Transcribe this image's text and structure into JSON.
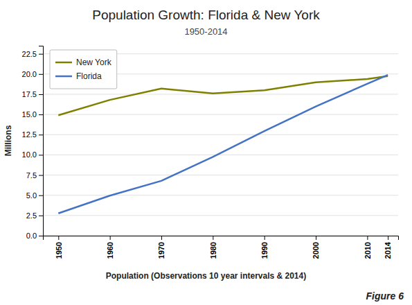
{
  "chart_data": {
    "type": "line",
    "title": "Population Growth: Florida & New York",
    "subtitle": "1950-2014",
    "xlabel": "Population (Observations 10 year intervals & 2014)",
    "ylabel": "Millions",
    "annotations": [
      "Figure 6"
    ],
    "x": [
      1950,
      1960,
      1970,
      1980,
      1990,
      2000,
      2010,
      2014
    ],
    "series": [
      {
        "name": "New York",
        "color": "#808000",
        "values": [
          14.9,
          16.8,
          18.2,
          17.6,
          17.99,
          18.98,
          19.38,
          19.75
        ]
      },
      {
        "name": "Florida",
        "color": "#4472C4",
        "values": [
          2.77,
          4.95,
          6.79,
          9.75,
          12.94,
          15.98,
          18.8,
          19.89
        ]
      }
    ],
    "xlim": [
      1947,
      2016
    ],
    "xticks": [
      1950,
      1960,
      1970,
      1980,
      1990,
      2000,
      2010,
      2014
    ],
    "ylim": [
      0,
      23.5
    ],
    "yticks": [
      {
        "value": 0,
        "label": "0.0"
      },
      2.5,
      {
        "value": 5,
        "label": "5.0"
      },
      7.5,
      {
        "value": 10,
        "label": "10.0"
      },
      12.5,
      {
        "value": 15,
        "label": "15.0"
      },
      17.5,
      {
        "value": 20,
        "label": "20.0"
      },
      22.5
    ],
    "grid": true,
    "legend": "upper left"
  }
}
